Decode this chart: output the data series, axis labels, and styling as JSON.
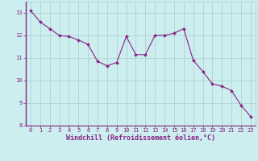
{
  "x": [
    0,
    1,
    2,
    3,
    4,
    5,
    6,
    7,
    8,
    9,
    10,
    11,
    12,
    13,
    14,
    15,
    16,
    17,
    18,
    19,
    20,
    21,
    22,
    23
  ],
  "y": [
    13.1,
    12.6,
    12.3,
    12.0,
    11.95,
    11.8,
    11.6,
    10.85,
    10.65,
    10.8,
    11.95,
    11.15,
    11.15,
    12.0,
    12.0,
    12.1,
    12.3,
    10.9,
    10.4,
    9.85,
    9.75,
    9.55,
    8.9,
    8.4
  ],
  "line_color": "#882288",
  "marker": "D",
  "marker_size": 2,
  "bg_color": "#cceeee",
  "grid_color": "#aacccc",
  "xlabel": "Windchill (Refroidissement éolien,°C)",
  "xlabel_color": "#882288",
  "xlim": [
    -0.5,
    23.5
  ],
  "ylim": [
    8,
    13.5
  ],
  "yticks": [
    8,
    9,
    10,
    11,
    12,
    13
  ],
  "xticks": [
    0,
    1,
    2,
    3,
    4,
    5,
    6,
    7,
    8,
    9,
    10,
    11,
    12,
    13,
    14,
    15,
    16,
    17,
    18,
    19,
    20,
    21,
    22,
    23
  ],
  "tick_color": "#882288",
  "tick_fontsize": 5.0,
  "xlabel_fontsize": 6.0,
  "linewidth": 0.8,
  "spine_color": "#882288"
}
